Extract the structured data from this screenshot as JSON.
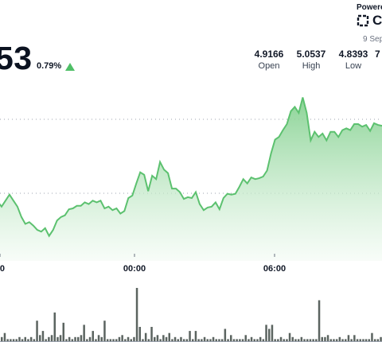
{
  "header": {
    "price": "53",
    "change": "0.79%",
    "stats": [
      {
        "value": "4.9166",
        "label": "Open"
      },
      {
        "value": "5.0537",
        "label": "High"
      },
      {
        "value": "4.8393",
        "label": "Low"
      },
      {
        "value": "7",
        "label": ""
      }
    ],
    "powered_by": "Powered",
    "brand_name": "Co",
    "date": "9 Sep"
  },
  "colors": {
    "line": "#5cc16f",
    "fill_top": "#7fcf8b",
    "fill_bottom": "#f3fbf4",
    "volume": "#5b6460",
    "up_arrow": "#4fbf67",
    "grid": "#9ca3af"
  },
  "chart_data": {
    "type": "area",
    "x_ticks": [
      "0",
      "00:00",
      "06:00"
    ],
    "price_series": [
      4.934,
      4.929,
      4.923,
      4.93,
      4.937,
      4.93,
      4.923,
      4.911,
      4.903,
      4.905,
      4.901,
      4.896,
      4.894,
      4.898,
      4.889,
      4.896,
      4.907,
      4.911,
      4.913,
      4.92,
      4.921,
      4.924,
      4.924,
      4.928,
      4.926,
      4.93,
      4.928,
      4.93,
      4.921,
      4.923,
      4.919,
      4.921,
      4.915,
      4.918,
      4.933,
      4.936,
      4.95,
      4.963,
      4.96,
      4.941,
      4.959,
      4.955,
      4.975,
      4.966,
      4.962,
      4.944,
      4.944,
      4.94,
      4.932,
      4.934,
      4.933,
      4.94,
      4.926,
      4.919,
      4.922,
      4.923,
      4.928,
      4.92,
      4.933,
      4.938,
      4.937,
      4.938,
      4.946,
      4.955,
      4.95,
      4.957,
      4.955,
      4.956,
      4.958,
      4.965,
      4.985,
      5.001,
      5.004,
      5.012,
      5.019,
      5.034,
      5.039,
      5.032,
      5.05,
      5.032,
      5.0,
      5.01,
      5.004,
      5.008,
      5.0,
      5.01,
      5.01,
      5.004,
      5.012,
      5.014,
      5.012,
      5.019,
      5.019,
      5.016,
      5.018,
      5.011,
      5.02,
      5.018,
      5.017
    ],
    "volume_series": [
      2,
      4,
      1,
      1,
      1,
      1,
      2,
      1,
      2,
      1,
      2,
      1,
      10,
      3,
      5,
      1,
      2,
      3,
      14,
      2,
      3,
      9,
      1,
      2,
      1,
      2,
      2,
      3,
      8,
      1,
      2,
      5,
      1,
      3,
      2,
      10,
      1,
      1,
      1,
      1,
      2,
      3,
      1,
      2,
      1,
      2,
      26,
      7,
      1,
      4,
      1,
      7,
      2,
      3,
      1,
      3,
      2,
      4,
      1,
      2,
      1,
      2,
      1,
      1,
      5,
      1,
      5,
      1,
      1,
      2,
      1,
      1,
      2,
      1,
      1,
      1,
      6,
      1,
      3,
      1,
      1,
      1,
      1,
      3,
      1,
      2,
      1,
      1,
      2,
      1,
      8,
      6,
      8,
      1,
      1,
      2,
      1,
      1,
      4,
      2,
      1,
      1,
      2,
      1,
      1,
      1,
      1,
      1,
      20,
      2,
      2,
      3,
      1,
      1,
      1,
      2,
      1,
      1,
      3,
      1,
      3,
      1,
      1,
      1,
      1,
      1,
      4,
      1,
      1,
      2
    ],
    "grid": "dotted-horizontal"
  }
}
